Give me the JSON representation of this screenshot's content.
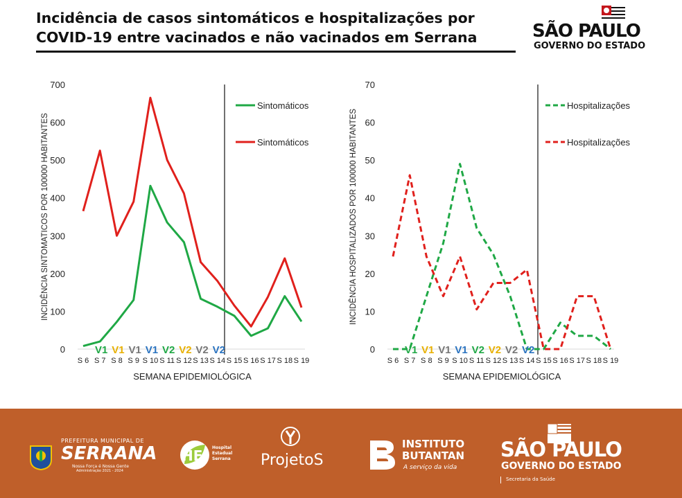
{
  "header": {
    "title_line1": "Incidência de casos sintomáticos e hospitalizações por",
    "title_line2": "COVID-19 entre vacinados e não vacinados em Serrana",
    "logo_title": "SÃO PAULO",
    "logo_subtitle": "GOVERNO DO ESTADO"
  },
  "colors": {
    "green": "#1fa845",
    "red": "#e0201c",
    "v1_green": "#1fa845",
    "v1_yellow": "#e8b000",
    "v1_gray": "#777777",
    "v1_blue": "#2a73c0",
    "footer_bg": "#bf5f2a"
  },
  "markers": [
    {
      "label": "V1",
      "color": "#1fa845"
    },
    {
      "label": "V1",
      "color": "#e8b000"
    },
    {
      "label": "V1",
      "color": "#777777"
    },
    {
      "label": "V1",
      "color": "#2a73c0"
    },
    {
      "label": "V2",
      "color": "#1fa845"
    },
    {
      "label": "V2",
      "color": "#e8b000"
    },
    {
      "label": "V2",
      "color": "#777777"
    },
    {
      "label": "V2",
      "color": "#2a73c0"
    }
  ],
  "chart_data": [
    {
      "type": "line",
      "title": "",
      "xlabel": "SEMANA EPIDEMIOLÓGICA",
      "ylabel": "INCIDÊNCIA SINTOMATICOS POR 100000 HABITANTES",
      "categories": [
        "S 6",
        "S 7",
        "S 8",
        "S 9",
        "S 10",
        "S 11",
        "S 12",
        "S 13",
        "S 14",
        "S 15",
        "S 16",
        "S 17",
        "S 18",
        "S 19"
      ],
      "ylim": [
        0,
        700
      ],
      "yticks": [
        0,
        100,
        200,
        300,
        400,
        500,
        600,
        700
      ],
      "grid": false,
      "legend_position": "top-right",
      "series": [
        {
          "name": "Sintomáticos",
          "color": "#1fa845",
          "dash": false,
          "values": [
            8,
            20,
            72,
            130,
            432,
            335,
            283,
            133,
            112,
            88,
            35,
            55,
            140,
            73
          ]
        },
        {
          "name": "Sintomáticos",
          "color": "#e0201c",
          "dash": false,
          "values": [
            365,
            525,
            300,
            390,
            665,
            500,
            412,
            230,
            180,
            115,
            60,
            138,
            240,
            110
          ]
        }
      ]
    },
    {
      "type": "line",
      "title": "",
      "xlabel": "SEMANA EPIDEMIOLÓGICA",
      "ylabel": "INCIDÊNCIA HOSPITALIZADOS POR 100000 HABITANTES",
      "categories": [
        "S 6",
        "S 7",
        "S 8",
        "S 9",
        "S 10",
        "S 11",
        "S 12",
        "S 13",
        "S 14",
        "S 15",
        "S 16",
        "S 17",
        "S 18",
        "S 19"
      ],
      "ylim": [
        0,
        70
      ],
      "yticks": [
        0,
        10,
        20,
        30,
        40,
        50,
        60,
        70
      ],
      "grid": false,
      "legend_position": "top-right",
      "series": [
        {
          "name": "Hospitalizações",
          "color": "#1fa845",
          "dash": true,
          "values": [
            0,
            0,
            14,
            28,
            49,
            32,
            25,
            14,
            0,
            0,
            7,
            3.5,
            3.5,
            0
          ]
        },
        {
          "name": "Hospitalizações",
          "color": "#e0201c",
          "dash": true,
          "values": [
            24.5,
            46,
            24.5,
            14,
            24.5,
            10.5,
            17.5,
            17.5,
            21,
            0,
            0,
            14,
            14,
            0
          ]
        }
      ]
    }
  ],
  "footer": {
    "serrana_top": "PREFEITURA MUNICIPAL DE",
    "serrana_name": "SERRANA",
    "serrana_tag": "Nossa Força é Nossa Gente",
    "serrana_admin": "Administração 2021 - 2024",
    "hospital_mark": "HE",
    "hospital_name_1": "Hospital",
    "hospital_name_2": "Estadual",
    "hospital_name_3": "Serrana",
    "projeto": "ProjetoS",
    "butantan_1": "INSTITUTO",
    "butantan_2": "BUTANTAN",
    "butantan_tag": "A serviço da vida",
    "sp_title": "SÃO PAULO",
    "sp_sub": "GOVERNO DO ESTADO",
    "sp_secretaria": "Secretaria da Saúde"
  }
}
